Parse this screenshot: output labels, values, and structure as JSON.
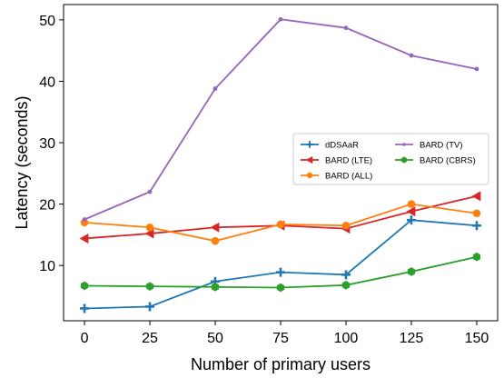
{
  "chart_data": {
    "type": "line",
    "title": "",
    "xlabel": "Number of primary users",
    "ylabel": "Latency (seconds)",
    "x": [
      0,
      25,
      50,
      75,
      100,
      125,
      150
    ],
    "xlim": [
      -8,
      158
    ],
    "ylim": [
      1.0,
      52.5
    ],
    "xticks": [
      0,
      25,
      50,
      75,
      100,
      125,
      150
    ],
    "yticks": [
      10,
      20,
      30,
      40,
      50
    ],
    "grid": false,
    "legend_position": "center-right",
    "legend_columns": 2,
    "series": [
      {
        "name": "dDSAaR",
        "color": "#1f77b4",
        "marker": "plus",
        "values": [
          3.0,
          3.3,
          7.4,
          8.9,
          8.5,
          17.4,
          16.5
        ]
      },
      {
        "name": "BARD (LTE)",
        "color": "#d62728",
        "marker": "triangle-left",
        "values": [
          14.4,
          15.2,
          16.2,
          16.5,
          16.0,
          18.8,
          21.3
        ]
      },
      {
        "name": "BARD (ALL)",
        "color": "#ff7f0e",
        "marker": "circle",
        "values": [
          17.0,
          16.2,
          14.0,
          16.7,
          16.5,
          20.0,
          18.5
        ]
      },
      {
        "name": "BARD (TV)",
        "color": "#9467bd",
        "marker": "dot",
        "values": [
          17.5,
          22.0,
          38.8,
          50.1,
          48.7,
          44.2,
          42.0
        ]
      },
      {
        "name": "BARD (CBRS)",
        "color": "#2ca02c",
        "marker": "hexagon",
        "values": [
          6.7,
          6.6,
          6.5,
          6.4,
          6.8,
          9.0,
          11.4
        ]
      }
    ]
  }
}
